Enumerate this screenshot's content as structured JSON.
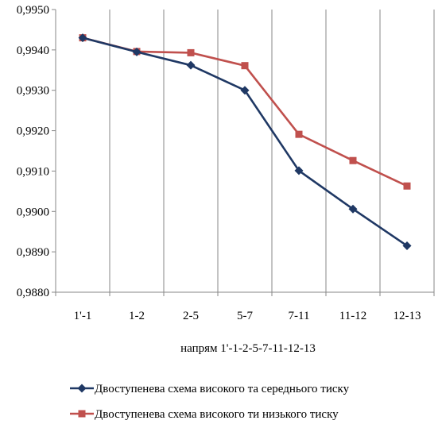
{
  "chart_data": {
    "type": "line",
    "title": "",
    "xlabel": "напрям 1'-1-2-5-7-11-12-13",
    "ylabel": "",
    "categories": [
      "1'-1",
      "1-2",
      "2-5",
      "5-7",
      "7-11",
      "11-12",
      "12-13"
    ],
    "ylim": [
      0.988,
      0.995
    ],
    "yticks": [
      0.988,
      0.989,
      0.99,
      0.991,
      0.992,
      0.993,
      0.994,
      0.995
    ],
    "ytick_labels": [
      "0,9880",
      "0,9890",
      "0,9900",
      "0,9910",
      "0,9920",
      "0,9930",
      "0,9940",
      "0,9950"
    ],
    "grid": "vertical",
    "legend_position": "bottom",
    "series": [
      {
        "name": "Двоступенева схема високого та середнього тиску",
        "color": "#1F3864",
        "marker": "diamond",
        "values": [
          0.9943,
          0.99395,
          0.99362,
          0.993,
          0.99101,
          0.99006,
          0.98915
        ]
      },
      {
        "name": "Двоступенева схема високого ти низького тиску",
        "color": "#C0504D",
        "marker": "square",
        "values": [
          0.9943,
          0.99396,
          0.99393,
          0.99361,
          0.99191,
          0.99126,
          0.99063
        ]
      }
    ]
  }
}
